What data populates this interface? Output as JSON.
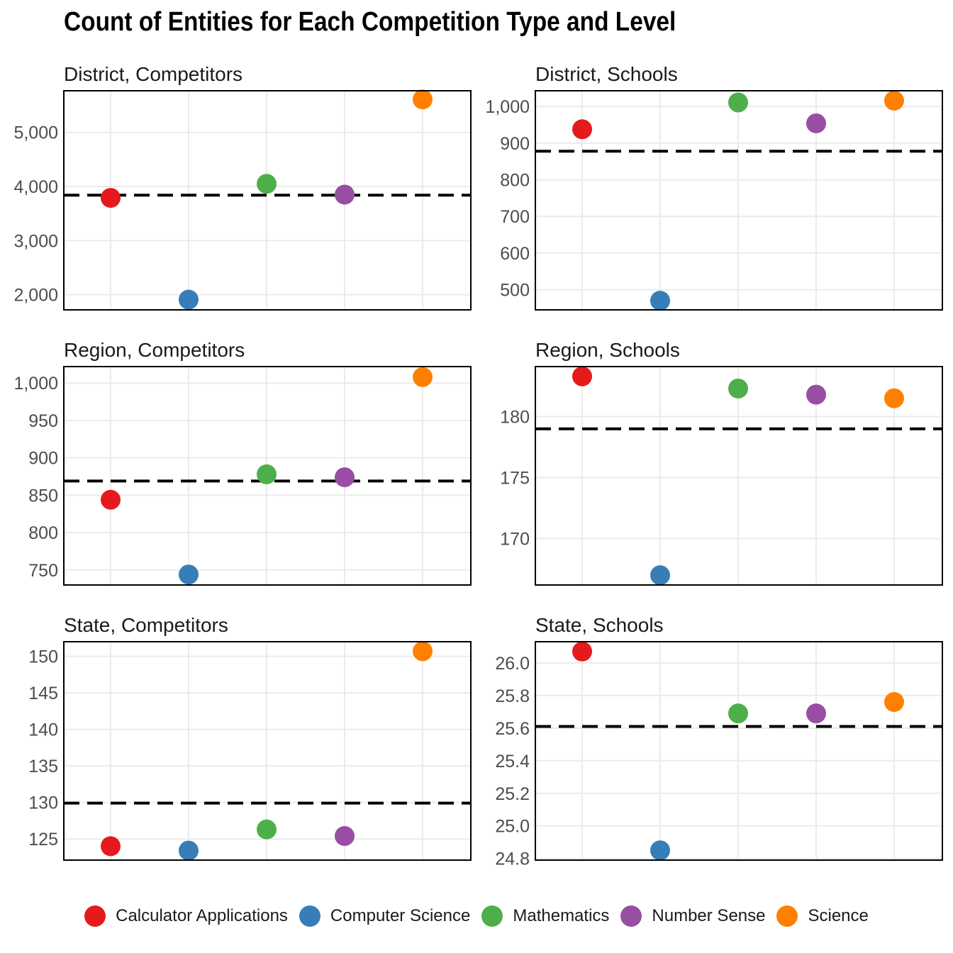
{
  "title": "Count of Entities for Each Competition Type and Level",
  "colors": {
    "Calculator Applications": "#E41A1C",
    "Computer Science": "#377EB8",
    "Mathematics": "#4DAF4A",
    "Number Sense": "#984EA3",
    "Science": "#FF7F00"
  },
  "legend": [
    "Calculator Applications",
    "Computer Science",
    "Mathematics",
    "Number Sense",
    "Science"
  ],
  "chart_data": [
    {
      "type": "scatter",
      "title": "District, Competitors",
      "categories": [
        "Calculator Applications",
        "Computer Science",
        "Mathematics",
        "Number Sense",
        "Science"
      ],
      "values": [
        3790,
        1910,
        4050,
        3850,
        5610
      ],
      "reference_line": 3840,
      "ylim": [
        1720,
        5770
      ],
      "yticks": [
        2000,
        3000,
        4000,
        5000
      ],
      "ytick_labels": [
        "2,000",
        "3,000",
        "4,000",
        "5,000"
      ]
    },
    {
      "type": "scatter",
      "title": "District, Schools",
      "categories": [
        "Calculator Applications",
        "Computer Science",
        "Mathematics",
        "Number Sense",
        "Science"
      ],
      "values": [
        938,
        470,
        1011,
        954,
        1016
      ],
      "reference_line": 878,
      "ylim": [
        445,
        1043
      ],
      "yticks": [
        500,
        600,
        700,
        800,
        900,
        1000
      ],
      "ytick_labels": [
        "500",
        "600",
        "700",
        "800",
        "900",
        "1,000"
      ]
    },
    {
      "type": "scatter",
      "title": "Region, Competitors",
      "categories": [
        "Calculator Applications",
        "Computer Science",
        "Mathematics",
        "Number Sense",
        "Science"
      ],
      "values": [
        844,
        744,
        878,
        874,
        1008
      ],
      "reference_line": 869,
      "ylim": [
        730,
        1022
      ],
      "yticks": [
        750,
        800,
        850,
        900,
        950,
        1000
      ],
      "ytick_labels": [
        "750",
        "800",
        "850",
        "900",
        "950",
        "1,000"
      ]
    },
    {
      "type": "scatter",
      "title": "Region, Schools",
      "categories": [
        "Calculator Applications",
        "Computer Science",
        "Mathematics",
        "Number Sense",
        "Science"
      ],
      "values": [
        183.3,
        167.0,
        182.3,
        181.8,
        181.5
      ],
      "reference_line": 179.0,
      "ylim": [
        166.2,
        184.1
      ],
      "yticks": [
        170,
        175,
        180
      ],
      "ytick_labels": [
        "170",
        "175",
        "180"
      ]
    },
    {
      "type": "scatter",
      "title": "State, Competitors",
      "categories": [
        "Calculator Applications",
        "Computer Science",
        "Mathematics",
        "Number Sense",
        "Science"
      ],
      "values": [
        124.0,
        123.4,
        126.3,
        125.4,
        150.7
      ],
      "reference_line": 129.9,
      "ylim": [
        122.1,
        152.0
      ],
      "yticks": [
        125,
        130,
        135,
        140,
        145,
        150
      ],
      "ytick_labels": [
        "125",
        "130",
        "135",
        "140",
        "145",
        "150"
      ]
    },
    {
      "type": "scatter",
      "title": "State, Schools",
      "categories": [
        "Calculator Applications",
        "Computer Science",
        "Mathematics",
        "Number Sense",
        "Science"
      ],
      "values": [
        26.07,
        24.85,
        25.69,
        25.69,
        25.76
      ],
      "reference_line": 25.61,
      "ylim": [
        24.79,
        26.13
      ],
      "yticks": [
        24.8,
        25.0,
        25.2,
        25.4,
        25.6,
        25.8,
        26.0
      ],
      "ytick_labels": [
        "24.8",
        "25.0",
        "25.2",
        "25.4",
        "25.6",
        "25.8",
        "26.0"
      ]
    }
  ]
}
